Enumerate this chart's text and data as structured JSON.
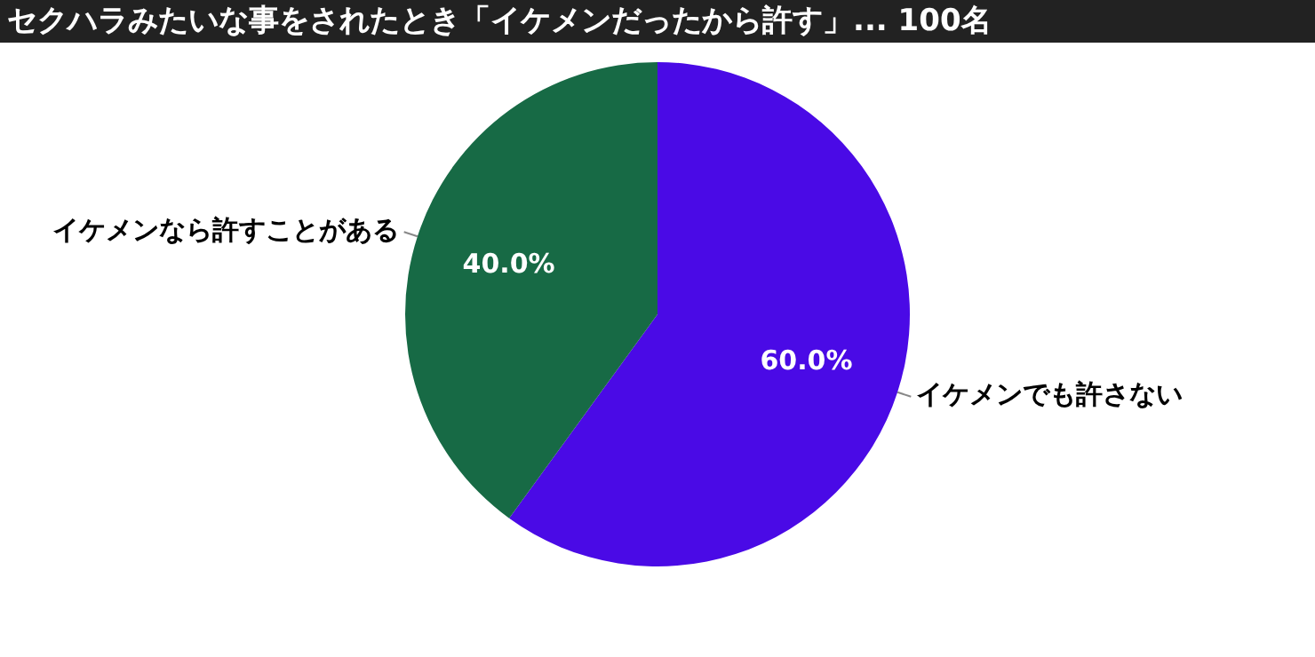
{
  "chart_data": {
    "type": "pie",
    "title": "セクハラみたいな事をされたとき「イケメンだったから許す」... 100名",
    "categories": [
      "イケメンでも許さない",
      "イケメンなら許すことがある"
    ],
    "values": [
      60,
      40
    ],
    "colors": [
      "#4a0ae6",
      "#176a45"
    ],
    "value_labels": [
      "60.0%",
      "40.0%"
    ],
    "legend": false
  }
}
